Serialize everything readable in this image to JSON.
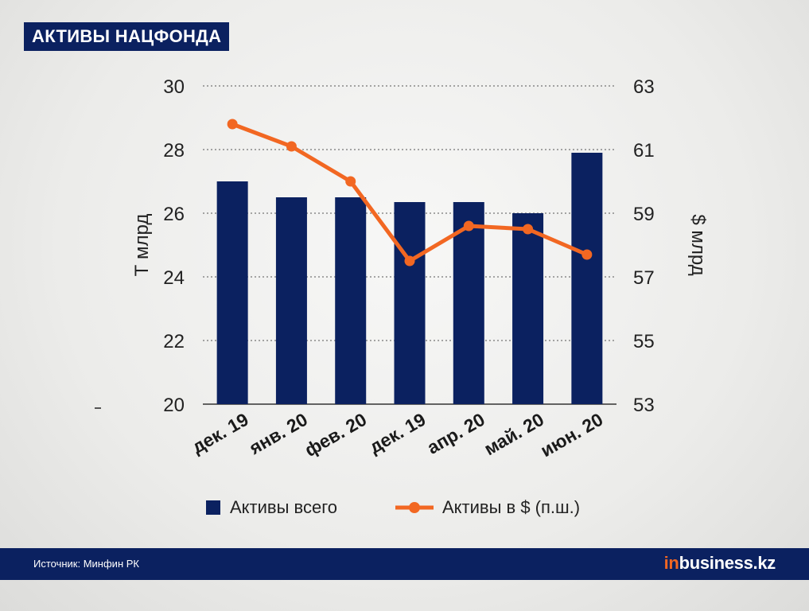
{
  "title": "АКТИВЫ НАЦФОНДА",
  "footer": {
    "source": "Источник: Минфин РК",
    "logo_prefix": "in",
    "logo_main": "business.kz"
  },
  "colors": {
    "bar": "#0b2160",
    "line": "#f26722",
    "header_bg": "#0b2160"
  },
  "chart_data": {
    "type": "bar",
    "categories": [
      "дек. 19",
      "янв. 20",
      "фев. 20",
      "дек. 19",
      "апр. 20",
      "май. 20",
      "июн. 20"
    ],
    "series": [
      {
        "name": "Активы всего",
        "type": "bar",
        "axis": "left",
        "values": [
          27.0,
          26.5,
          26.5,
          26.35,
          26.35,
          26.0,
          27.9
        ]
      },
      {
        "name": "Активы в $ (п.ш.)",
        "type": "line",
        "axis": "right",
        "values": [
          61.8,
          61.1,
          60.0,
          57.5,
          58.6,
          58.5,
          57.7
        ]
      }
    ],
    "ylabel": "Т млрд",
    "y2label": "$ млрд",
    "ylim": [
      20,
      30
    ],
    "y2lim": [
      53,
      63
    ],
    "yticks": [
      "20",
      "22",
      "24",
      "26",
      "28",
      "30"
    ],
    "y2ticks": [
      "53",
      "55",
      "57",
      "59",
      "61",
      "63"
    ],
    "grid": true,
    "legend_position": "bottom"
  }
}
